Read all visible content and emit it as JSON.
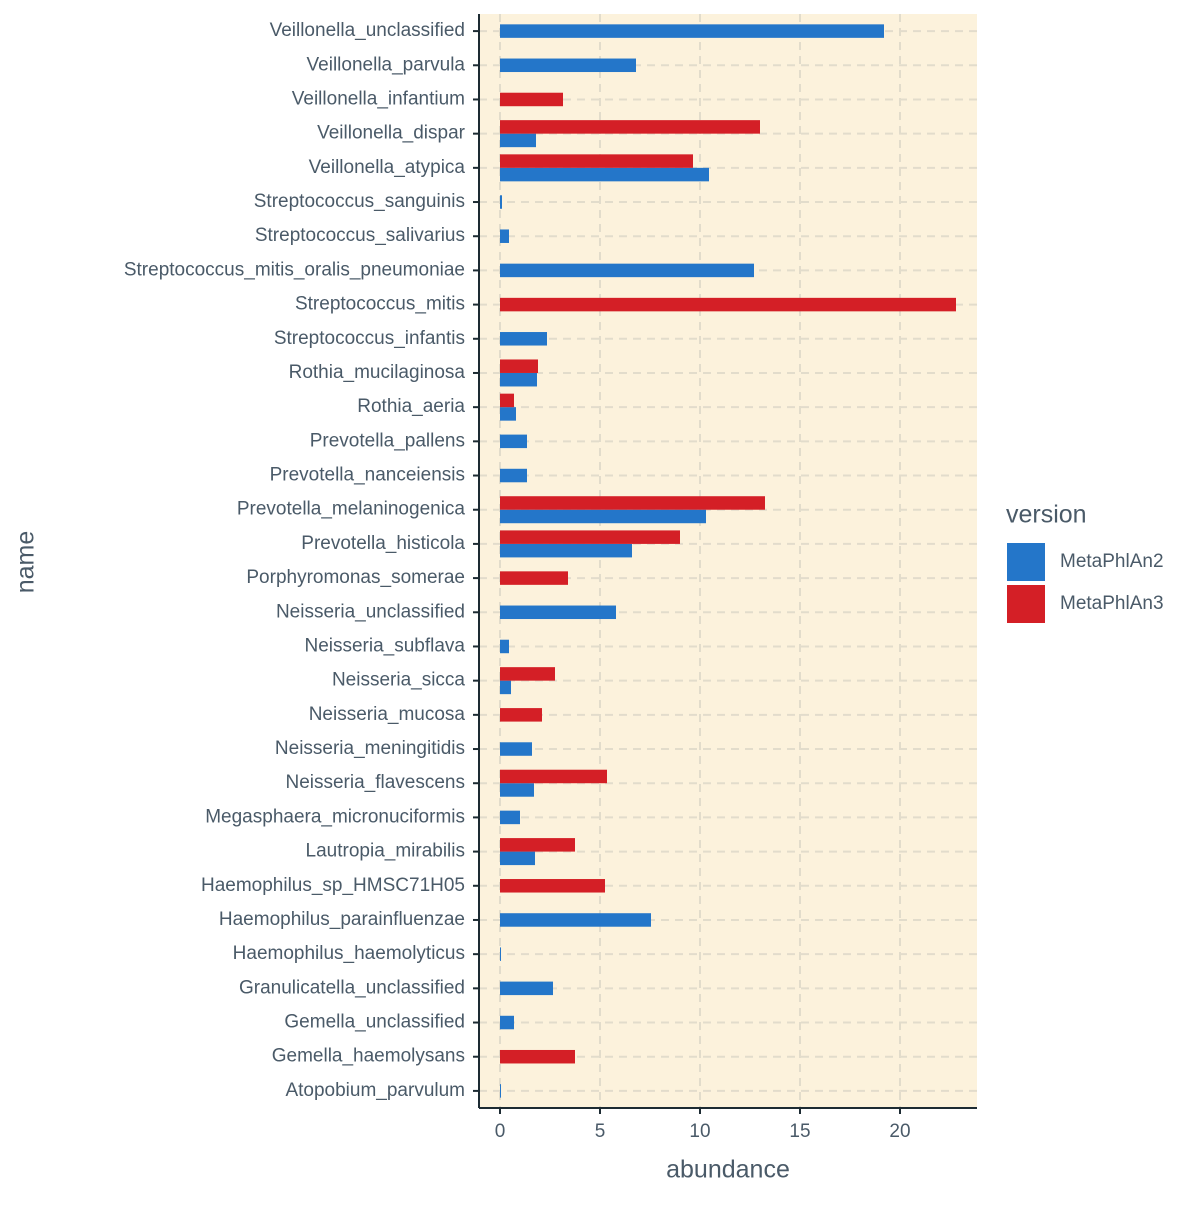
{
  "chart_data": {
    "type": "bar",
    "orientation": "horizontal",
    "x_label": "abundance",
    "y_label": "name",
    "legend_title": "version",
    "legend_position": "right",
    "categories": [
      "Veillonella_unclassified",
      "Veillonella_parvula",
      "Veillonella_infantium",
      "Veillonella_dispar",
      "Veillonella_atypica",
      "Streptococcus_sanguinis",
      "Streptococcus_salivarius",
      "Streptococcus_mitis_oralis_pneumoniae",
      "Streptococcus_mitis",
      "Streptococcus_infantis",
      "Rothia_mucilaginosa",
      "Rothia_aeria",
      "Prevotella_pallens",
      "Prevotella_nanceiensis",
      "Prevotella_melaninogenica",
      "Prevotella_histicola",
      "Porphyromonas_somerae",
      "Neisseria_unclassified",
      "Neisseria_subflava",
      "Neisseria_sicca",
      "Neisseria_mucosa",
      "Neisseria_meningitidis",
      "Neisseria_flavescens",
      "Megasphaera_micronuciformis",
      "Lautropia_mirabilis",
      "Haemophilus_sp_HMSC71H05",
      "Haemophilus_parainfluenzae",
      "Haemophilus_haemolyticus",
      "Granulicatella_unclassified",
      "Gemella_unclassified",
      "Gemella_haemolysans",
      "Atopobium_parvulum"
    ],
    "series": [
      {
        "name": "MetaPhlAn2",
        "color": "#2476c9",
        "values": [
          19.2,
          6.8,
          null,
          1.8,
          10.45,
          0.1,
          0.45,
          12.7,
          null,
          2.35,
          1.85,
          0.8,
          1.35,
          1.35,
          10.3,
          6.6,
          null,
          5.8,
          0.45,
          0.55,
          null,
          1.6,
          1.7,
          1.0,
          1.75,
          null,
          7.55,
          0.05,
          2.65,
          0.7,
          null,
          0.05
        ]
      },
      {
        "name": "MetaPhlAn3",
        "color": "#d41f26",
        "values": [
          null,
          null,
          3.15,
          13.0,
          9.65,
          null,
          null,
          null,
          22.8,
          null,
          1.9,
          0.7,
          null,
          null,
          13.25,
          9.0,
          3.4,
          null,
          null,
          2.75,
          2.1,
          null,
          5.35,
          null,
          3.75,
          5.25,
          null,
          null,
          null,
          null,
          3.75,
          null
        ]
      }
    ],
    "xlim": [
      -1.05,
      23.85
    ],
    "xticks": [
      0,
      5,
      10,
      15,
      20
    ],
    "grid": true,
    "background": "#fcf2dc"
  }
}
